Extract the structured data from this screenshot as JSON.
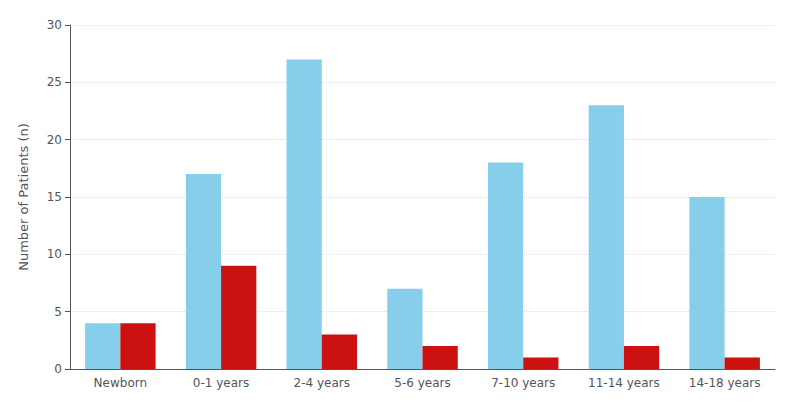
{
  "chart_data": {
    "type": "bar",
    "categories": [
      "Newborn",
      "0-1 years",
      "2-4 years",
      "5-6 years",
      "7-10 years",
      "11-14 years",
      "14-18 years"
    ],
    "series": [
      {
        "color": "#87CEEB",
        "values": [
          4,
          17,
          27,
          7,
          18,
          23,
          15
        ]
      },
      {
        "color": "#CC1111",
        "values": [
          4,
          9,
          3,
          2,
          1,
          2,
          1
        ]
      }
    ],
    "ylabel": "Number of Patients (n)",
    "ylim": [
      0,
      30
    ],
    "yticks": [
      0,
      5,
      10,
      15,
      20,
      25,
      30
    ],
    "grid": true
  }
}
